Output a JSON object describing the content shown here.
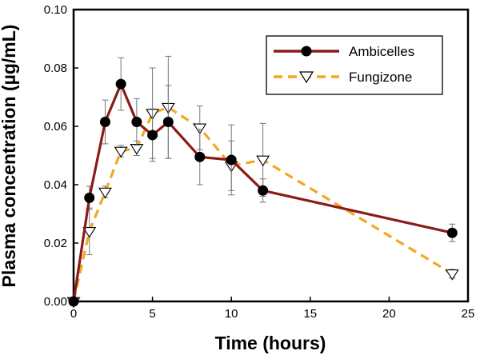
{
  "chart_data": {
    "type": "line",
    "title": "",
    "xlabel": "Time (hours)",
    "ylabel": "Plasma concentration (µg/mL)",
    "xlim": [
      0,
      25
    ],
    "ylim": [
      0,
      0.1
    ],
    "xticks": [
      0,
      5,
      10,
      15,
      20,
      25
    ],
    "yticks": [
      0.0,
      0.02,
      0.04,
      0.06,
      0.08,
      0.1
    ],
    "xtick_labels": [
      "0",
      "5",
      "10",
      "15",
      "20",
      "25"
    ],
    "ytick_labels": [
      "0.00",
      "0.02",
      "0.04",
      "0.06",
      "0.08",
      "0.10"
    ],
    "grid": false,
    "legend_position": "top-right",
    "series": [
      {
        "name": "Ambicelles",
        "color": "#8b1a1a",
        "line": "solid",
        "marker": "filled-circle",
        "x": [
          0,
          1,
          2,
          3,
          4,
          5,
          6,
          8,
          10,
          12,
          24
        ],
        "y": [
          0.0,
          0.0355,
          0.0615,
          0.0745,
          0.0615,
          0.057,
          0.0615,
          0.0495,
          0.0485,
          0.038,
          0.0235
        ],
        "err": [
          0,
          0.004,
          0.0075,
          0.009,
          0.008,
          0.009,
          0.0125,
          0.0095,
          0.012,
          0.004,
          0.003
        ]
      },
      {
        "name": "Fungizone",
        "color": "#f5a623",
        "line": "dashed",
        "marker": "open-triangle-down",
        "x": [
          0,
          1,
          2,
          3,
          4,
          5,
          6,
          8,
          10,
          12,
          24
        ],
        "y": [
          0.0,
          0.024,
          0.0375,
          0.0515,
          0.0525,
          0.0645,
          0.0665,
          0.0595,
          0.0465,
          0.0485,
          0.0095
        ],
        "err": [
          0,
          0.008,
          0.002,
          0.002,
          0.0025,
          0.0155,
          0.0175,
          0.0075,
          0.0085,
          0.0125,
          0.0015
        ]
      }
    ]
  }
}
